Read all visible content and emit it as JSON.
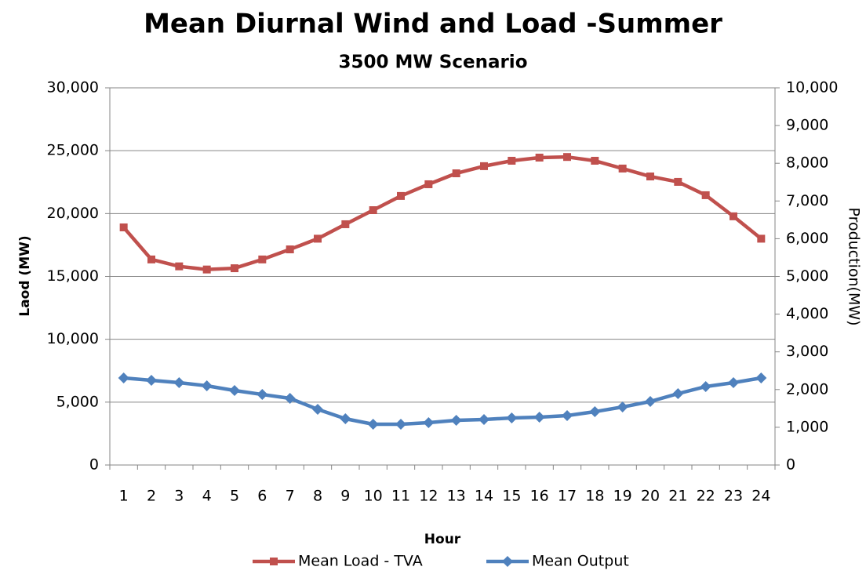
{
  "chart_data": {
    "type": "line",
    "title": "Mean Diurnal Wind and Load -Summer",
    "subtitle": "3500 MW Scenario",
    "x_label": "Hour",
    "y_label": "Laod (MW)",
    "y2_label": "Production(MW)",
    "categories": [
      "1",
      "2",
      "3",
      "4",
      "5",
      "6",
      "7",
      "8",
      "9",
      "10",
      "11",
      "12",
      "13",
      "14",
      "15",
      "16",
      "17",
      "18",
      "19",
      "20",
      "21",
      "22",
      "23",
      "24"
    ],
    "ylim": [
      0,
      30000
    ],
    "yticks": [
      0,
      {
        "value": 5000,
        "label": "5,000"
      },
      {
        "value": 10000,
        "label": "10,000"
      },
      {
        "value": 15000,
        "label": "15,000"
      },
      {
        "value": 20000,
        "label": "20,000"
      },
      {
        "value": 25000,
        "label": "25,000"
      },
      {
        "value": 30000,
        "label": "30,000"
      }
    ],
    "y2lim": [
      0,
      10000
    ],
    "y2ticks": [
      0,
      {
        "value": 1000,
        "label": "1,000"
      },
      {
        "value": 2000,
        "label": "2,000"
      },
      {
        "value": 3000,
        "label": "3,000"
      },
      {
        "value": 4000,
        "label": "4,000"
      },
      {
        "value": 5000,
        "label": "5,000"
      },
      {
        "value": 6000,
        "label": "6,000"
      },
      {
        "value": 7000,
        "label": "7,000"
      },
      {
        "value": 8000,
        "label": "8,000"
      },
      {
        "value": 9000,
        "label": "9,000"
      },
      {
        "value": 10000,
        "label": "10,000"
      }
    ],
    "grid": true,
    "legend": "bottom",
    "series": [
      {
        "name": "Mean Load - TVA",
        "color": "#c0504d",
        "marker": "square",
        "values": [
          18900,
          16350,
          15800,
          15550,
          15650,
          16350,
          17150,
          18000,
          19150,
          20270,
          21400,
          22330,
          23200,
          23770,
          24200,
          24450,
          24500,
          24200,
          23580,
          22950,
          22520,
          21460,
          19780,
          18000
        ]
      },
      {
        "name": "Mean Output",
        "color": "#4f81bd",
        "marker": "diamond",
        "axis": "y2",
        "values": [
          2308,
          2245,
          2183,
          2100,
          1975,
          1870,
          1767,
          1476,
          1227,
          1081,
          1081,
          1123,
          1185,
          1206,
          1247,
          1268,
          1310,
          1414,
          1538,
          1684,
          1892,
          2079,
          2183,
          2308
        ]
      }
    ]
  }
}
